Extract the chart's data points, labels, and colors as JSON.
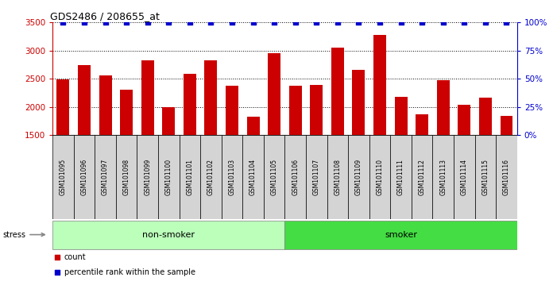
{
  "title": "GDS2486 / 208655_at",
  "samples": [
    "GSM101095",
    "GSM101096",
    "GSM101097",
    "GSM101098",
    "GSM101099",
    "GSM101100",
    "GSM101101",
    "GSM101102",
    "GSM101103",
    "GSM101104",
    "GSM101105",
    "GSM101106",
    "GSM101107",
    "GSM101108",
    "GSM101109",
    "GSM101110",
    "GSM101111",
    "GSM101112",
    "GSM101113",
    "GSM101114",
    "GSM101115",
    "GSM101116"
  ],
  "counts": [
    2490,
    2740,
    2560,
    2300,
    2830,
    2000,
    2580,
    2820,
    2380,
    1820,
    2950,
    2380,
    2390,
    3050,
    2650,
    3280,
    2180,
    1870,
    2480,
    2030,
    2160,
    1840
  ],
  "percentile_ranks": [
    100,
    100,
    100,
    100,
    100,
    100,
    100,
    100,
    100,
    100,
    100,
    100,
    100,
    100,
    100,
    100,
    100,
    100,
    100,
    100,
    100,
    100
  ],
  "non_smoker_count": 11,
  "smoker_count": 11,
  "ylim_left": [
    1500,
    3500
  ],
  "ylim_right": [
    0,
    100
  ],
  "bar_color": "#cc0000",
  "dot_color": "#0000cc",
  "non_smoker_color": "#bbffbb",
  "smoker_color": "#44dd44",
  "xlabel_bg_color": "#d4d4d4",
  "bg_color": "#ffffff",
  "stress_label": "stress",
  "legend_count": "count",
  "legend_percentile": "percentile rank within the sample"
}
